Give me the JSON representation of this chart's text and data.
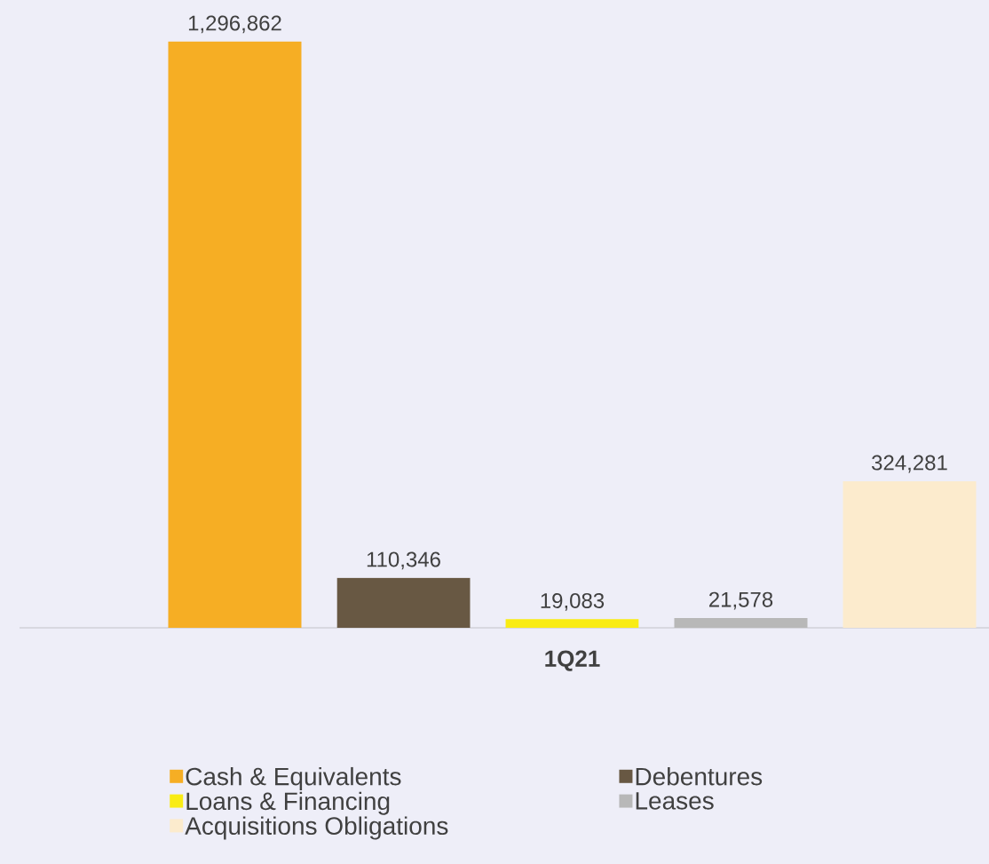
{
  "chart_data": {
    "type": "bar",
    "xlabel": "1Q21",
    "categories": [
      null
    ],
    "series": [
      {
        "name": "Cash & Equivalents",
        "color": "#f6ae24",
        "values": [
          1296862
        ],
        "value_labels": [
          "1,296,862"
        ]
      },
      {
        "name": "Debentures",
        "color": "#685843",
        "values": [
          110346
        ],
        "value_labels": [
          "110,346"
        ]
      },
      {
        "name": "Loans & Financing",
        "color": "#f9ec14",
        "values": [
          19083
        ],
        "value_labels": [
          "19,083"
        ]
      },
      {
        "name": "Leases",
        "color": "#b8b8b8",
        "values": [
          21578
        ],
        "value_labels": [
          "21,578"
        ]
      },
      {
        "name": "Acquisitions Obligations",
        "color": "#fcebcd",
        "values": [
          324281
        ],
        "value_labels": [
          "324,281"
        ]
      }
    ],
    "legend": "bottom"
  }
}
